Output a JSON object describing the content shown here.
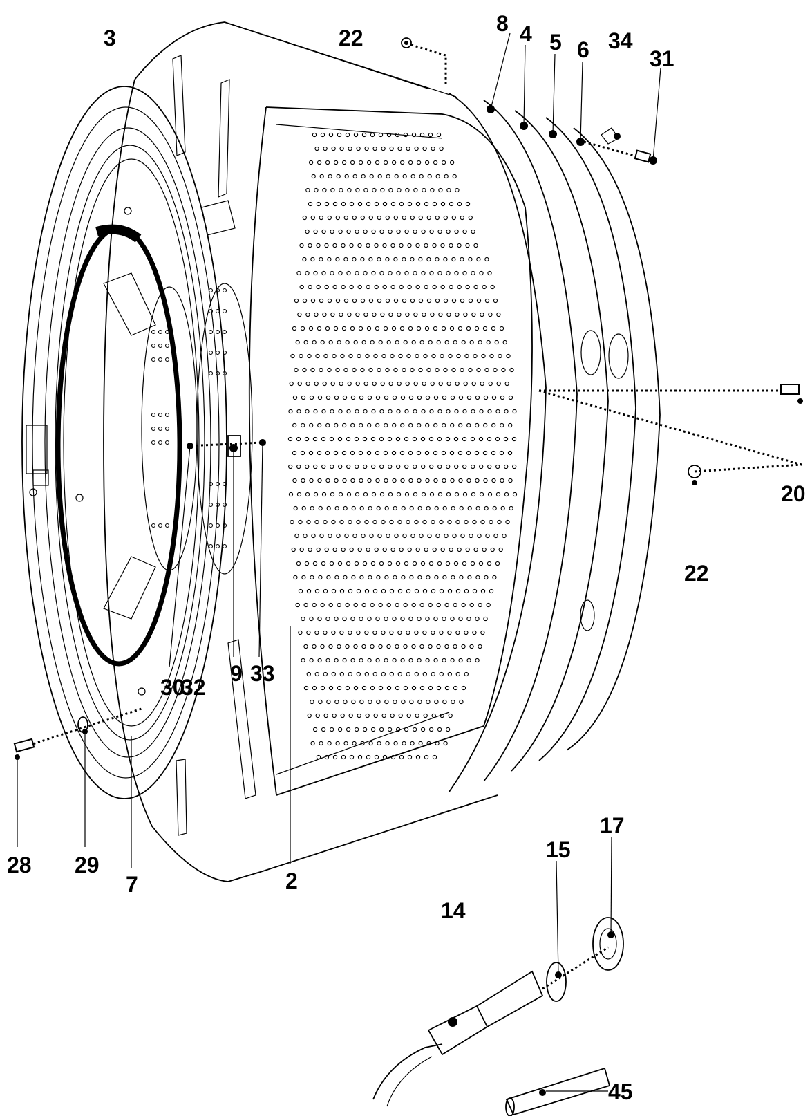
{
  "diagram": {
    "type": "exploded parts diagram",
    "subject": "washing machine drum and tub assembly",
    "callouts": {
      "c3": "3",
      "c22_top": "22",
      "c8": "8",
      "c4": "4",
      "c5": "5",
      "c6": "6",
      "c34": "34",
      "c31": "31",
      "c20": "20",
      "c22_right": "22",
      "c30": "30",
      "c32": "32",
      "c9": "9",
      "c33": "33",
      "c28": "28",
      "c29": "29",
      "c7": "7",
      "c2": "2",
      "c14": "14",
      "c15": "15",
      "c17": "17",
      "c45": "45"
    },
    "parts": [
      {
        "id": "front-tub-shell",
        "callout": "3"
      },
      {
        "id": "door-gasket-ring",
        "callout": "30"
      },
      {
        "id": "perforated-drum",
        "callout": "2"
      },
      {
        "id": "rear-tub-rings",
        "callouts": [
          "8",
          "4",
          "5",
          "6",
          "34"
        ]
      },
      {
        "id": "screw-rear",
        "callout": "31"
      },
      {
        "id": "screw-side",
        "callout": "20"
      },
      {
        "id": "screw-front",
        "callout": "28"
      },
      {
        "id": "washer-front",
        "callout": "29"
      },
      {
        "id": "clip",
        "callout": "9"
      },
      {
        "id": "heater-element",
        "callout": "14"
      },
      {
        "id": "heater-seal",
        "callout": "15"
      },
      {
        "id": "heater-nut",
        "callout": "17"
      },
      {
        "id": "ntc-sensor",
        "callout": "45"
      }
    ]
  }
}
